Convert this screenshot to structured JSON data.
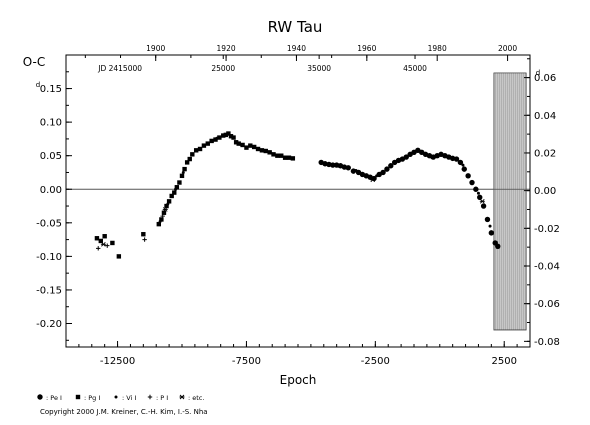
{
  "chart_data": {
    "type": "scatter",
    "title": "RW Tau",
    "ylabel_left": "O-C",
    "ylabel_left_unit": "d",
    "xlabel": "Epoch",
    "ylabel_right_unit": "d",
    "xlim": [
      -14500,
      3500
    ],
    "ylim_left": [
      -0.235,
      0.2
    ],
    "ylim_right": [
      -0.083,
      0.072
    ],
    "left_ticks": [
      {
        "v": 0.15,
        "label": "0.15"
      },
      {
        "v": 0.1,
        "label": "0.10"
      },
      {
        "v": 0.05,
        "label": "0.05"
      },
      {
        "v": 0.0,
        "label": "0.00"
      },
      {
        "v": -0.05,
        "label": "-0.05"
      },
      {
        "v": -0.1,
        "label": "-0.10"
      },
      {
        "v": -0.15,
        "label": "-0.15"
      },
      {
        "v": -0.2,
        "label": "-0.20"
      }
    ],
    "right_ticks": [
      {
        "v": 0.06,
        "label": "0.06"
      },
      {
        "v": 0.04,
        "label": "0.04"
      },
      {
        "v": 0.02,
        "label": "0.02"
      },
      {
        "v": 0.0,
        "label": "0.00"
      },
      {
        "v": -0.02,
        "label": "-0.02"
      },
      {
        "v": -0.04,
        "label": "-0.04"
      },
      {
        "v": -0.06,
        "label": "-0.06"
      },
      {
        "v": -0.08,
        "label": "-0.08"
      }
    ],
    "bottom_ticks": [
      {
        "v": -12500,
        "label": "-12500"
      },
      {
        "v": -7500,
        "label": "-7500"
      },
      {
        "v": -2500,
        "label": "-2500"
      },
      {
        "v": 2500,
        "label": "2500"
      }
    ],
    "top_year_ticks": [
      {
        "v": -11020,
        "label": "1900"
      },
      {
        "v": -8290,
        "label": "1920"
      },
      {
        "v": -5560,
        "label": "1940"
      },
      {
        "v": -2830,
        "label": "1960"
      },
      {
        "v": -100,
        "label": "1980"
      },
      {
        "v": 2630,
        "label": "2000"
      }
    ],
    "top_jd_ticks": [
      {
        "v": -12400,
        "label": "JD 2415000"
      },
      {
        "v": -8400,
        "label": "25000"
      },
      {
        "v": -4680,
        "label": "35000"
      },
      {
        "v": -960,
        "label": "45000"
      }
    ],
    "shaded_region": [
      2100,
      3350
    ],
    "zero_line": 0.0,
    "series": [
      {
        "name": "Pg I",
        "marker": "square",
        "points": [
          [
            -13300,
            -0.073
          ],
          [
            -13150,
            -0.077
          ],
          [
            -13000,
            -0.07
          ],
          [
            -12700,
            -0.08
          ],
          [
            -12450,
            -0.1
          ],
          [
            -11500,
            -0.067
          ],
          [
            -10900,
            -0.052
          ],
          [
            -10800,
            -0.045
          ],
          [
            -10700,
            -0.035
          ],
          [
            -10600,
            -0.025
          ],
          [
            -10500,
            -0.018
          ],
          [
            -10400,
            -0.01
          ],
          [
            -10300,
            -0.005
          ],
          [
            -10200,
            0.003
          ],
          [
            -10100,
            0.01
          ],
          [
            -10000,
            0.02
          ],
          [
            -9900,
            0.03
          ],
          [
            -9800,
            0.04
          ],
          [
            -9700,
            0.045
          ],
          [
            -9600,
            0.052
          ],
          [
            -9450,
            0.058
          ],
          [
            -9300,
            0.06
          ],
          [
            -9150,
            0.065
          ],
          [
            -9000,
            0.068
          ],
          [
            -8850,
            0.072
          ],
          [
            -8700,
            0.074
          ],
          [
            -8550,
            0.077
          ],
          [
            -8400,
            0.08
          ],
          [
            -8300,
            0.081
          ],
          [
            -8200,
            0.083
          ],
          [
            -8100,
            0.079
          ],
          [
            -8000,
            0.077
          ],
          [
            -7900,
            0.07
          ],
          [
            -7800,
            0.068
          ],
          [
            -7650,
            0.066
          ],
          [
            -7500,
            0.062
          ],
          [
            -7350,
            0.065
          ],
          [
            -7200,
            0.063
          ],
          [
            -7050,
            0.06
          ],
          [
            -6900,
            0.058
          ],
          [
            -6750,
            0.057
          ],
          [
            -6600,
            0.055
          ],
          [
            -6450,
            0.052
          ],
          [
            -6300,
            0.05
          ],
          [
            -6150,
            0.05
          ],
          [
            -6000,
            0.047
          ],
          [
            -5850,
            0.047
          ],
          [
            -5700,
            0.046
          ]
        ]
      },
      {
        "name": "Pe I",
        "marker": "circle",
        "points": [
          [
            -4600,
            0.04
          ],
          [
            -4450,
            0.038
          ],
          [
            -4300,
            0.037
          ],
          [
            -4150,
            0.036
          ],
          [
            -4000,
            0.036
          ],
          [
            -3850,
            0.035
          ],
          [
            -3700,
            0.033
          ],
          [
            -3550,
            0.032
          ],
          [
            -3350,
            0.027
          ],
          [
            -3150,
            0.025
          ],
          [
            -3000,
            0.022
          ],
          [
            -2850,
            0.02
          ],
          [
            -2700,
            0.018
          ],
          [
            -2550,
            0.016
          ],
          [
            -2350,
            0.022
          ],
          [
            -2200,
            0.025
          ],
          [
            -2050,
            0.03
          ],
          [
            -1900,
            0.035
          ],
          [
            -1750,
            0.04
          ],
          [
            -1600,
            0.043
          ],
          [
            -1450,
            0.045
          ],
          [
            -1300,
            0.048
          ],
          [
            -1150,
            0.052
          ],
          [
            -1000,
            0.055
          ],
          [
            -850,
            0.058
          ],
          [
            -700,
            0.055
          ],
          [
            -550,
            0.052
          ],
          [
            -400,
            0.05
          ],
          [
            -250,
            0.048
          ],
          [
            -100,
            0.05
          ],
          [
            50,
            0.052
          ],
          [
            200,
            0.05
          ],
          [
            350,
            0.048
          ],
          [
            500,
            0.046
          ],
          [
            650,
            0.045
          ],
          [
            800,
            0.04
          ],
          [
            950,
            0.03
          ],
          [
            1100,
            0.02
          ],
          [
            1250,
            0.01
          ],
          [
            1400,
            0.0
          ],
          [
            1550,
            -0.012
          ],
          [
            1700,
            -0.025
          ],
          [
            1850,
            -0.045
          ],
          [
            2000,
            -0.065
          ],
          [
            2150,
            -0.08
          ],
          [
            2250,
            -0.085
          ]
        ]
      },
      {
        "name": "Vi I",
        "marker": "small-dot",
        "points": [
          [
            -10850,
            -0.048
          ],
          [
            -10550,
            -0.022
          ],
          [
            -10250,
            0.0
          ],
          [
            -9950,
            0.025
          ],
          [
            -8650,
            0.076
          ],
          [
            -7750,
            0.067
          ],
          [
            -6550,
            0.054
          ],
          [
            -5950,
            0.048
          ],
          [
            -3900,
            0.034
          ],
          [
            -3250,
            0.028
          ],
          [
            -2450,
            0.02
          ],
          [
            -1700,
            0.041
          ],
          [
            -900,
            0.057
          ],
          [
            -300,
            0.047
          ],
          [
            300,
            0.049
          ],
          [
            900,
            0.036
          ],
          [
            1500,
            -0.006
          ],
          [
            1950,
            -0.055
          ]
        ]
      },
      {
        "name": "P I",
        "marker": "plus",
        "points": [
          [
            -13250,
            -0.088
          ],
          [
            -12900,
            -0.084
          ],
          [
            -11450,
            -0.075
          ],
          [
            -10750,
            -0.04
          ]
        ]
      },
      {
        "name": "etc.",
        "marker": "star",
        "points": [
          [
            -13050,
            -0.082
          ],
          [
            -10650,
            -0.03
          ],
          [
            -2600,
            0.014
          ],
          [
            1650,
            -0.018
          ]
        ]
      }
    ]
  },
  "legend_items": [
    {
      "symbol": "filled-circle",
      "label": ": Pe I"
    },
    {
      "symbol": "square",
      "label": ": Pg I"
    },
    {
      "symbol": "dot",
      "label": ": Vi I"
    },
    {
      "symbol": "plus",
      "label": ": P I"
    },
    {
      "symbol": "star",
      "label": ": etc."
    }
  ],
  "copyright": "Copyright 2000 J.M. Kreiner, C.-H. Kim, I.-S. Nha"
}
